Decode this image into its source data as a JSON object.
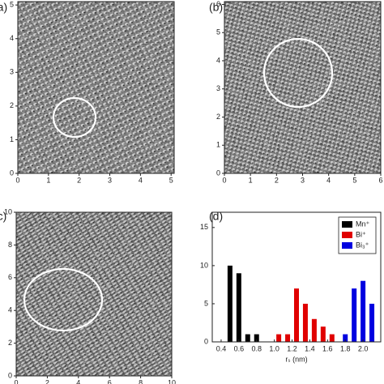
{
  "chart_data": [
    {
      "type": "image",
      "panel_label": "(a)",
      "xlim": [
        0,
        5.1
      ],
      "ylim": [
        0,
        5.1
      ],
      "xticks": [
        0,
        1,
        2,
        3,
        4,
        5
      ],
      "yticks": [
        0,
        1,
        2,
        3,
        4,
        5
      ]
    },
    {
      "type": "image",
      "panel_label": "(b)",
      "xlim": [
        0,
        6
      ],
      "ylim": [
        0,
        6.1
      ],
      "xticks": [
        0,
        1,
        2,
        3,
        4,
        5,
        6
      ],
      "yticks": [
        0,
        1,
        2,
        3,
        4,
        5,
        6
      ]
    },
    {
      "type": "image",
      "panel_label": "(c)",
      "xlim": [
        0,
        10
      ],
      "ylim": [
        0,
        10
      ],
      "xticks": [
        0,
        2,
        4,
        6,
        8,
        10
      ],
      "yticks": [
        0,
        2,
        4,
        6,
        8,
        10
      ]
    },
    {
      "type": "bar",
      "panel_label": "(d)",
      "x_label": "rₛ (nm)",
      "xlim": [
        0.3,
        2.2
      ],
      "ylim": [
        0,
        17
      ],
      "xticks": [
        0.4,
        0.6,
        0.8,
        {
          "value": 1.0,
          "label": "1.0"
        },
        1.2,
        1.4,
        1.6,
        1.8,
        {
          "value": 2.0,
          "label": "2.0"
        }
      ],
      "yticks": [
        0,
        5,
        10,
        15
      ],
      "legend": "upper right",
      "series": [
        {
          "name": "Mn⁺",
          "color": "#000000",
          "x": [
            0.5,
            0.6,
            0.7,
            0.8
          ],
          "values": [
            10,
            9,
            1,
            1
          ]
        },
        {
          "name": "Bi⁺",
          "color": "#e00000",
          "x": [
            1.05,
            1.15,
            1.25,
            1.35,
            1.45,
            1.55,
            1.65
          ],
          "values": [
            1,
            1,
            7,
            5,
            3,
            2,
            1
          ]
        },
        {
          "name": "Bi₃⁺",
          "color": "#0000e0",
          "x": [
            1.8,
            1.9,
            2.0,
            2.1
          ],
          "values": [
            1,
            7,
            8,
            5
          ]
        }
      ]
    }
  ]
}
